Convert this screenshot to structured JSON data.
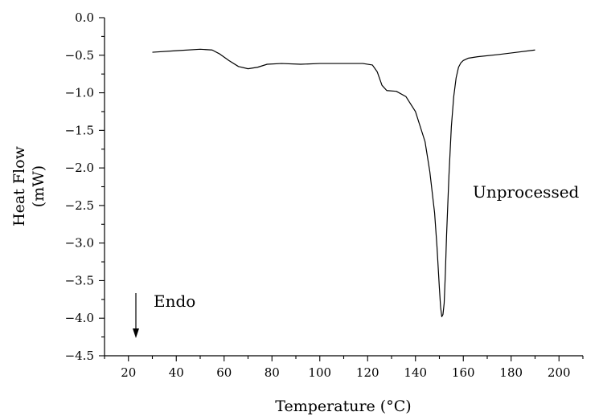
{
  "chart_data": {
    "type": "line",
    "xlabel": "Temperature (°C)",
    "ylabel_line1": "Heat Flow",
    "ylabel_line2": "(mW)",
    "xlim": [
      10,
      210
    ],
    "ylim": [
      -4.5,
      0.0
    ],
    "xticks": [
      20,
      40,
      60,
      80,
      100,
      120,
      140,
      160,
      180,
      200
    ],
    "yticks": [
      0.0,
      -0.5,
      -1.0,
      -1.5,
      -2.0,
      -2.5,
      -3.0,
      -3.5,
      -4.0,
      -4.5
    ],
    "ytick_labels": [
      "0.0",
      "−0.5",
      "−1.0",
      "−1.5",
      "−2.0",
      "−2.5",
      "−3.0",
      "−3.5",
      "−4.0",
      "−4.5"
    ],
    "grid": false,
    "series": [
      {
        "name": "Unprocessed",
        "x": [
          30,
          40,
          50,
          55,
          58,
          62,
          66,
          70,
          74,
          78,
          84,
          92,
          100,
          110,
          118,
          122,
          124,
          126,
          128,
          132,
          136,
          140,
          144,
          146,
          148,
          149,
          150,
          150.5,
          151,
          151.5,
          152,
          152.5,
          153,
          154,
          155,
          156,
          157,
          158,
          159,
          160,
          162,
          166,
          175,
          190
        ],
        "y": [
          -0.46,
          -0.44,
          -0.42,
          -0.43,
          -0.48,
          -0.57,
          -0.65,
          -0.68,
          -0.66,
          -0.62,
          -0.61,
          -0.62,
          -0.61,
          -0.61,
          -0.61,
          -0.63,
          -0.72,
          -0.9,
          -0.97,
          -0.98,
          -1.05,
          -1.25,
          -1.65,
          -2.05,
          -2.6,
          -3.05,
          -3.6,
          -3.85,
          -3.98,
          -3.95,
          -3.8,
          -3.4,
          -2.9,
          -2.1,
          -1.45,
          -1.05,
          -0.8,
          -0.66,
          -0.6,
          -0.57,
          -0.54,
          -0.52,
          -0.49,
          -0.43
        ]
      }
    ],
    "annotations": {
      "series_label": "Unprocessed",
      "endo_label": "Endo"
    }
  }
}
